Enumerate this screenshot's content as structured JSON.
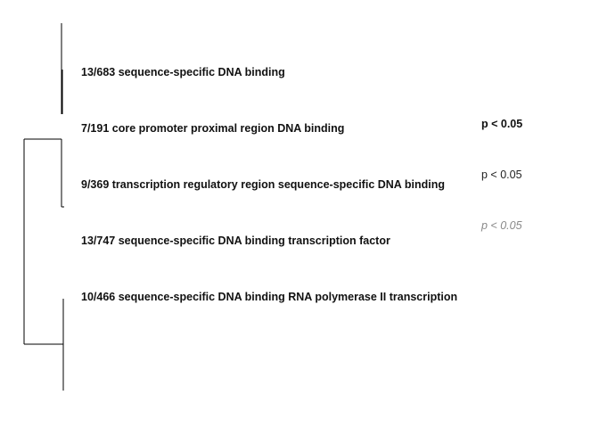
{
  "terms": [
    {
      "label": "13/683 sequence-specific DNA binding"
    },
    {
      "label": "7/191 core promoter proximal region DNA binding"
    },
    {
      "label": "9/369 transcription regulatory region sequence-specific DNA binding"
    },
    {
      "label": "13/747 sequence-specific DNA binding transcription factor"
    },
    {
      "label": "10/466 sequence-specific DNA binding RNA polymerase II transcription"
    }
  ],
  "legend": [
    {
      "label": "p < 0.05",
      "style": "bold"
    },
    {
      "label": "p < 0.05",
      "style": "normal"
    },
    {
      "label": "p < 0.05",
      "style": "italic"
    }
  ],
  "colors": {
    "line": "#000000",
    "text": "#111111",
    "legend_muted": "#8a8a8a"
  }
}
